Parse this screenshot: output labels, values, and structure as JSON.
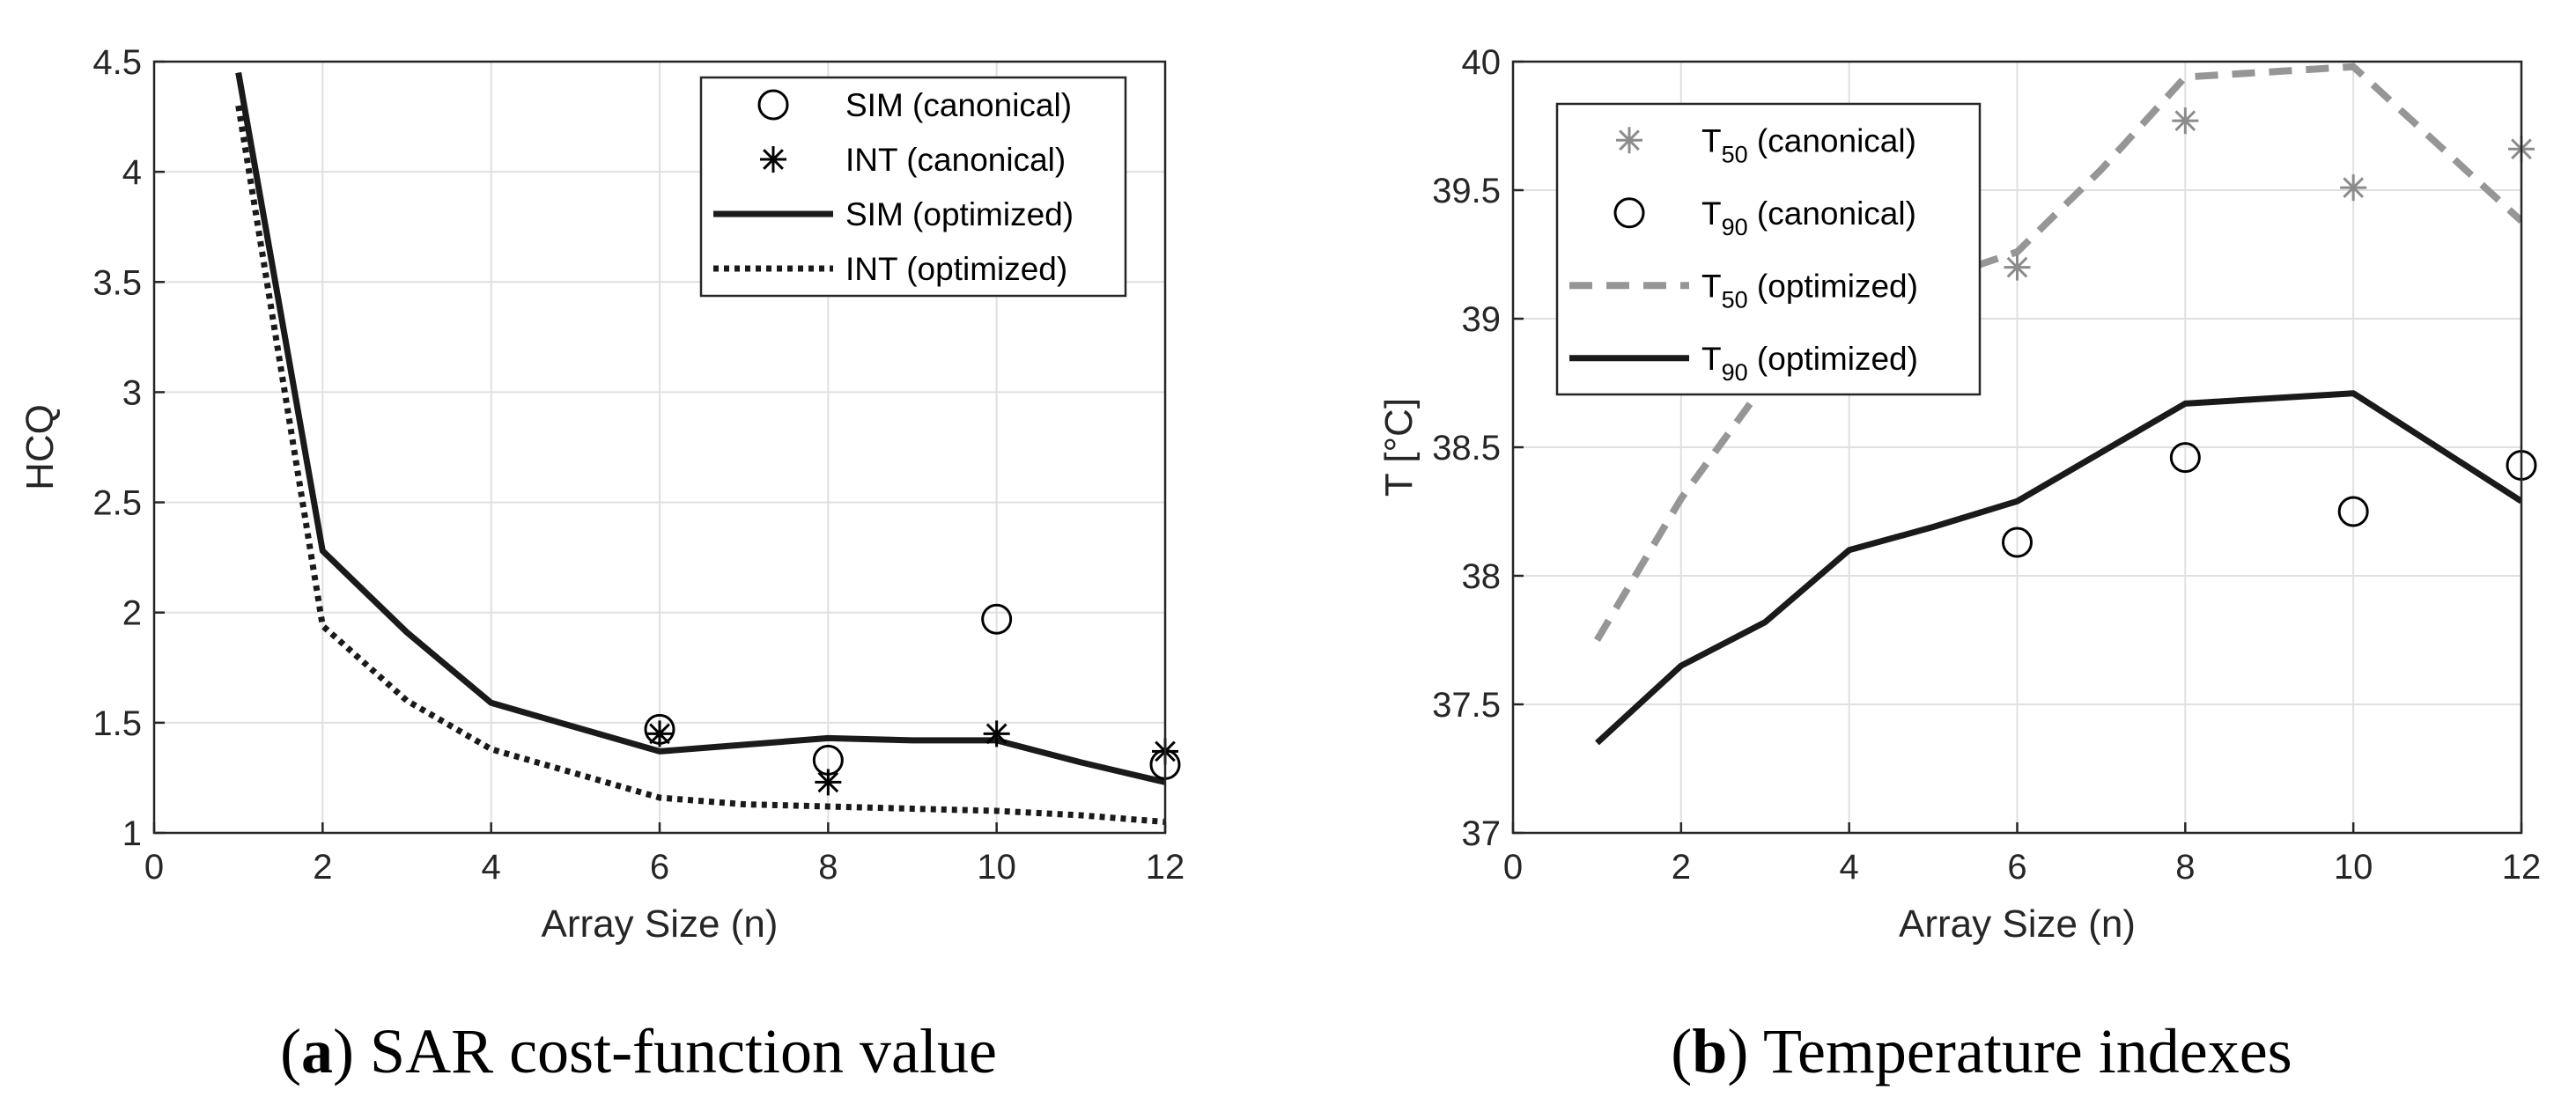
{
  "chart_data": [
    {
      "id": "a",
      "type": "line",
      "caption_letter": "a",
      "caption_text": "SAR cost-function value",
      "xlabel": "Array Size (n)",
      "ylabel": "HCQ",
      "xlim": [
        0,
        12
      ],
      "ylim": [
        1,
        4.5
      ],
      "xticks": [
        0,
        2,
        4,
        6,
        8,
        10,
        12
      ],
      "yticks": [
        1,
        1.5,
        2,
        2.5,
        3,
        3.5,
        4,
        4.5
      ],
      "xtick_labels": [
        "0",
        "2",
        "4",
        "6",
        "8",
        "10",
        "12"
      ],
      "ytick_labels": [
        "1",
        "1.5",
        "2",
        "2.5",
        "3",
        "3.5",
        "4",
        "4.5"
      ],
      "grid": true,
      "legend_position": "top-right",
      "series": [
        {
          "name": "SIM (canonical)",
          "kind": "scatter",
          "marker": "circle",
          "color": "#000000",
          "x": [
            6,
            8,
            10,
            12
          ],
          "y": [
            1.47,
            1.33,
            1.97,
            1.31
          ]
        },
        {
          "name": "INT (canonical)",
          "kind": "scatter",
          "marker": "asterisk",
          "color": "#000000",
          "x": [
            6,
            8,
            10,
            12
          ],
          "y": [
            1.45,
            1.23,
            1.45,
            1.37
          ]
        },
        {
          "name": "SIM (optimized)",
          "kind": "line",
          "dash": "solid",
          "color": "#1a1a1a",
          "x": [
            1,
            2,
            3,
            4,
            5,
            6,
            7,
            8,
            9,
            10,
            11,
            12
          ],
          "y": [
            4.45,
            2.28,
            1.91,
            1.59,
            1.48,
            1.37,
            1.4,
            1.43,
            1.42,
            1.42,
            1.32,
            1.23
          ]
        },
        {
          "name": "INT (optimized)",
          "kind": "line",
          "dash": "dotted",
          "color": "#1a1a1a",
          "x": [
            1,
            2,
            3,
            4,
            5,
            6,
            7,
            8,
            9,
            10,
            11,
            12
          ],
          "y": [
            4.3,
            1.94,
            1.6,
            1.38,
            1.27,
            1.16,
            1.13,
            1.12,
            1.11,
            1.1,
            1.08,
            1.05
          ]
        }
      ]
    },
    {
      "id": "b",
      "type": "line",
      "caption_letter": "b",
      "caption_text": "Temperature indexes",
      "xlabel": "Array Size (n)",
      "ylabel": "T [°C]",
      "xlim": [
        0,
        12
      ],
      "ylim": [
        37,
        40
      ],
      "xticks": [
        0,
        2,
        4,
        6,
        8,
        10,
        12
      ],
      "yticks": [
        37,
        37.5,
        38,
        38.5,
        39,
        39.5,
        40
      ],
      "xtick_labels": [
        "0",
        "2",
        "4",
        "6",
        "8",
        "10",
        "12"
      ],
      "ytick_labels": [
        "37",
        "37.5",
        "38",
        "38.5",
        "39",
        "39.5",
        "40"
      ],
      "grid": true,
      "legend_position": "top-left",
      "series": [
        {
          "name_main": "T",
          "name_sub": "50",
          "name_rest": " (canonical)",
          "kind": "scatter",
          "marker": "asterisk",
          "color": "#8c8c8c",
          "x": [
            6,
            8,
            10,
            12
          ],
          "y": [
            39.2,
            39.77,
            39.51,
            39.66
          ]
        },
        {
          "name_main": "T",
          "name_sub": "90",
          "name_rest": " (canonical)",
          "kind": "scatter",
          "marker": "circle",
          "color": "#000000",
          "x": [
            6,
            8,
            10,
            12
          ],
          "y": [
            38.13,
            38.46,
            38.25,
            38.43
          ]
        },
        {
          "name_main": "T",
          "name_sub": "50",
          "name_rest": " (optimized)",
          "kind": "line",
          "dash": "dashed",
          "color": "#969696",
          "x": [
            1,
            2,
            3,
            4,
            5,
            6,
            7,
            8,
            9,
            10,
            11,
            12
          ],
          "y": [
            37.75,
            38.3,
            38.75,
            39.05,
            39.15,
            39.26,
            39.58,
            39.94,
            39.96,
            39.98,
            39.68,
            39.38
          ]
        },
        {
          "name_main": "T",
          "name_sub": "90",
          "name_rest": " (optimized)",
          "kind": "line",
          "dash": "solid",
          "color": "#1a1a1a",
          "x": [
            1,
            2,
            3,
            4,
            5,
            6,
            7,
            8,
            9,
            10,
            11,
            12
          ],
          "y": [
            37.35,
            37.65,
            37.82,
            38.1,
            38.19,
            38.29,
            38.48,
            38.67,
            38.69,
            38.71,
            38.5,
            38.29
          ]
        }
      ]
    }
  ]
}
